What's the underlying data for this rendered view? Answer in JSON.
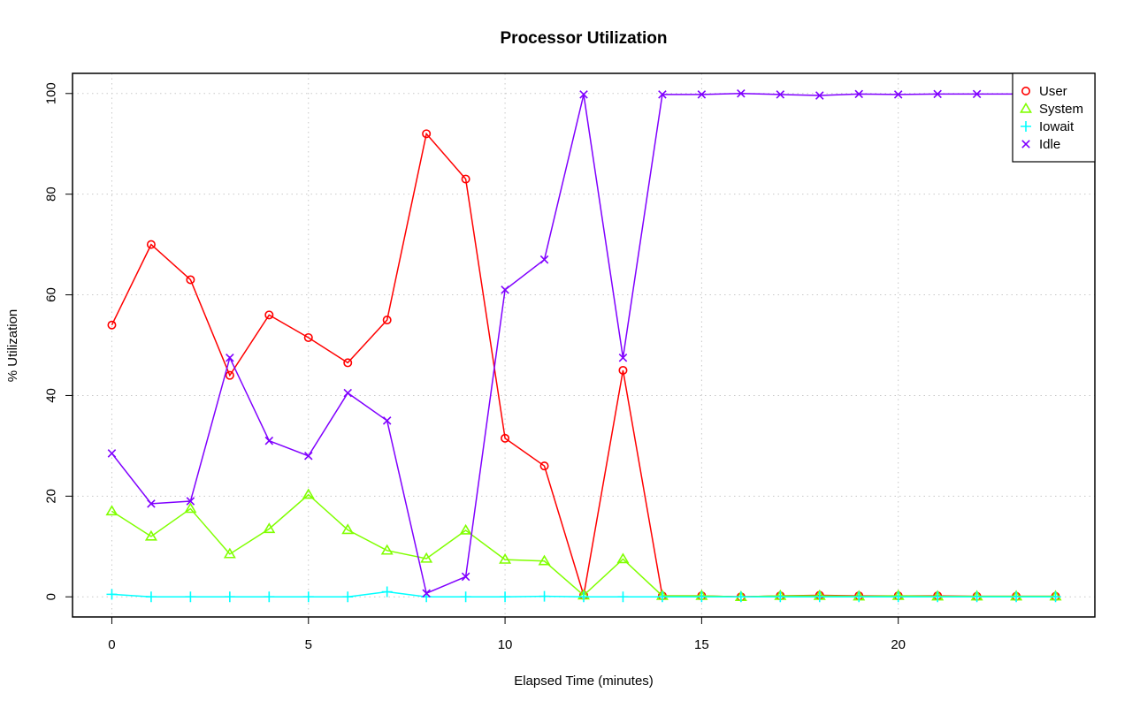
{
  "chart_data": {
    "type": "line",
    "title": "Processor Utilization",
    "xlabel": "Elapsed Time (minutes)",
    "ylabel": "% Utilization",
    "xlim": [
      -1,
      25
    ],
    "ylim": [
      -4,
      104
    ],
    "xticks": [
      0,
      5,
      10,
      15,
      20
    ],
    "yticks": [
      0,
      20,
      40,
      60,
      80,
      100
    ],
    "grid": true,
    "legend_position": "top-right",
    "x": [
      0,
      1,
      2,
      3,
      4,
      5,
      6,
      7,
      8,
      9,
      10,
      11,
      12,
      13,
      14,
      15,
      16,
      17,
      18,
      19,
      20,
      21,
      22,
      23,
      24
    ],
    "series": [
      {
        "name": "User",
        "color": "#ff0000",
        "marker": "circle",
        "values": [
          54,
          70,
          63,
          44,
          56,
          51.5,
          46.5,
          55,
          92,
          83,
          31.5,
          26,
          0.3,
          45,
          0.2,
          0.2,
          0,
          0.2,
          0.3,
          0.2,
          0.2,
          0.2,
          0.1,
          0.1,
          0.1
        ]
      },
      {
        "name": "System",
        "color": "#80ff00",
        "marker": "triangle",
        "values": [
          17,
          12,
          17.5,
          8.5,
          13.5,
          20.3,
          13.3,
          9.2,
          7.6,
          13.2,
          7.4,
          7.1,
          0.3,
          7.5,
          0.2,
          0.2,
          0,
          0.2,
          0.2,
          0.1,
          0.2,
          0.1,
          0.1,
          0.1,
          0.1
        ]
      },
      {
        "name": "Iowait",
        "color": "#00ffff",
        "marker": "plus",
        "values": [
          0.5,
          0,
          0,
          0,
          0,
          0,
          0,
          1,
          0,
          0,
          0,
          0.1,
          0,
          0,
          0,
          0,
          0,
          0,
          0,
          0,
          0,
          0,
          0,
          0,
          0
        ]
      },
      {
        "name": "Idle",
        "color": "#8000ff",
        "marker": "cross",
        "values": [
          28.5,
          18.5,
          19,
          47.5,
          31,
          28,
          40.5,
          35,
          0.7,
          4,
          61,
          67,
          99.8,
          47.5,
          99.8,
          99.8,
          100,
          99.8,
          99.6,
          99.9,
          99.8,
          99.9,
          99.9,
          99.9,
          99.9
        ]
      }
    ]
  }
}
